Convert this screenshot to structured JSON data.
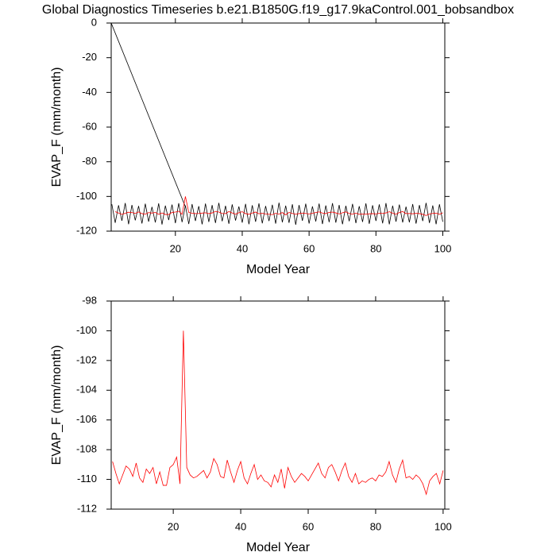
{
  "chart_data": [
    {
      "type": "line",
      "title": "Global Diagnostics Timeseries b.e21.B1850G.f19_g17.9kaControl.001_bobsandbox",
      "xlabel": "Model Year",
      "ylabel": "EVAP_F (mm/month)",
      "xlim": [
        0.8,
        100.6
      ],
      "ylim": [
        -120,
        0
      ],
      "xticks": [
        20,
        40,
        60,
        80,
        100
      ],
      "yticks": [
        0,
        -20,
        -40,
        -60,
        -80,
        -100,
        -120
      ],
      "series": [
        {
          "color": "#000000",
          "x": [
            0.8,
            23
          ],
          "values": [
            0,
            -106
          ]
        },
        {
          "color": "#000000",
          "x": [
            1,
            2,
            3,
            4,
            5,
            6,
            7,
            8,
            9,
            10,
            11,
            12,
            13,
            14,
            15,
            16,
            17,
            18,
            19,
            20,
            21,
            22,
            23,
            24,
            25,
            26,
            27,
            28,
            29,
            30,
            31,
            32,
            33,
            34,
            35,
            36,
            37,
            38,
            39,
            40,
            41,
            42,
            43,
            44,
            45,
            46,
            47,
            48,
            49,
            50,
            51,
            52,
            53,
            54,
            55,
            56,
            57,
            58,
            59,
            60,
            61,
            62,
            63,
            64,
            65,
            66,
            67,
            68,
            69,
            70,
            71,
            72,
            73,
            74,
            75,
            76,
            77,
            78,
            79,
            80,
            81,
            82,
            83,
            84,
            85,
            86,
            87,
            88,
            89,
            90,
            91,
            92,
            93,
            94,
            95,
            96,
            97,
            98,
            99,
            100
          ],
          "values": [
            -104.5,
            -115.2,
            -105.1,
            -114.0,
            -103.8,
            -116.0,
            -104.9,
            -113.8,
            -105.5,
            -115.6,
            -104.2,
            -114.5,
            -106.0,
            -115.0,
            -104.0,
            -116.2,
            -105.3,
            -113.6,
            -104.7,
            -115.4,
            -103.9,
            -114.8,
            -105.2,
            -115.9,
            -104.4,
            -114.1,
            -105.6,
            -116.1,
            -104.1,
            -114.7,
            -105.0,
            -115.3,
            -103.7,
            -114.3,
            -105.4,
            -115.8,
            -104.6,
            -113.9,
            -105.8,
            -115.1,
            -104.3,
            -116.0,
            -105.1,
            -114.6,
            -104.0,
            -115.5,
            -105.5,
            -114.2,
            -104.8,
            -115.7,
            -103.6,
            -114.9,
            -105.3,
            -115.2,
            -104.5,
            -116.3,
            -105.0,
            -114.0,
            -104.2,
            -115.6,
            -105.7,
            -114.4,
            -104.1,
            -115.9,
            -105.2,
            -114.8,
            -103.9,
            -115.1,
            -104.9,
            -116.0,
            -105.4,
            -114.3,
            -104.3,
            -115.4,
            -105.6,
            -114.7,
            -104.0,
            -115.8,
            -105.1,
            -114.1,
            -104.6,
            -115.5,
            -103.8,
            -116.1,
            -105.3,
            -114.5,
            -104.7,
            -115.0,
            -105.9,
            -114.9,
            -104.4,
            -115.7,
            -105.0,
            -114.2,
            -103.7,
            -115.3,
            -105.2,
            -116.0,
            -104.5,
            -114.6
          ]
        },
        {
          "color": "#ff0000",
          "x": [
            2,
            3,
            4,
            5,
            6,
            7,
            8,
            9,
            10,
            11,
            12,
            13,
            14,
            15,
            16,
            17,
            18,
            19,
            20,
            21,
            22,
            23,
            24,
            25,
            26,
            27,
            28,
            29,
            30,
            31,
            32,
            33,
            34,
            35,
            36,
            37,
            38,
            39,
            40,
            41,
            42,
            43,
            44,
            45,
            46,
            47,
            48,
            49,
            50,
            51,
            52,
            53,
            54,
            55,
            56,
            57,
            58,
            59,
            60,
            61,
            62,
            63,
            64,
            65,
            66,
            67,
            68,
            69,
            70,
            71,
            72,
            73,
            74,
            75,
            76,
            77,
            78,
            79,
            80,
            81,
            82,
            83,
            84,
            85,
            86,
            87,
            88,
            89,
            90,
            91,
            92,
            93,
            94,
            95,
            96,
            97,
            98,
            99,
            100
          ],
          "values": [
            -108.8,
            -109.6,
            -110.3,
            -109.7,
            -109.1,
            -109.3,
            -109.8,
            -108.9,
            -109.9,
            -110.2,
            -109.3,
            -109.6,
            -109.2,
            -110.3,
            -109.5,
            -110.4,
            -110.4,
            -109.2,
            -109.0,
            -108.5,
            -110.3,
            -100.0,
            -109.2,
            -109.7,
            -109.9,
            -109.8,
            -109.6,
            -109.4,
            -109.9,
            -109.5,
            -108.6,
            -109.0,
            -109.8,
            -109.9,
            -108.7,
            -109.5,
            -110.2,
            -109.4,
            -108.8,
            -109.9,
            -110.3,
            -109.6,
            -109.0,
            -110.0,
            -109.7,
            -110.1,
            -110.2,
            -110.5,
            -109.7,
            -110.2,
            -109.3,
            -110.6,
            -109.2,
            -109.8,
            -110.2,
            -109.9,
            -109.6,
            -109.8,
            -110.1,
            -109.7,
            -109.3,
            -108.9,
            -109.6,
            -109.9,
            -109.2,
            -109.0,
            -109.5,
            -110.1,
            -109.4,
            -108.9,
            -109.8,
            -110.2,
            -109.6,
            -110.3,
            -110.1,
            -110.2,
            -110.0,
            -109.9,
            -110.1,
            -109.7,
            -109.8,
            -109.5,
            -108.8,
            -109.7,
            -110.2,
            -109.3,
            -108.7,
            -109.9,
            -109.8,
            -110.0,
            -109.7,
            -109.9,
            -110.3,
            -111.0,
            -110.1,
            -109.8,
            -109.6,
            -110.3,
            -109.4
          ]
        }
      ]
    },
    {
      "type": "line",
      "xlabel": "Model Year",
      "ylabel": "EVAP_F (mm/month)",
      "xlim": [
        1.6,
        100.5
      ],
      "ylim": [
        -112,
        -98
      ],
      "xticks": [
        20,
        40,
        60,
        80,
        100
      ],
      "yticks": [
        -98,
        -100,
        -102,
        -104,
        -106,
        -108,
        -110,
        -112
      ],
      "series": [
        {
          "color": "#ff0000",
          "x": [
            2,
            3,
            4,
            5,
            6,
            7,
            8,
            9,
            10,
            11,
            12,
            13,
            14,
            15,
            16,
            17,
            18,
            19,
            20,
            21,
            22,
            23,
            24,
            25,
            26,
            27,
            28,
            29,
            30,
            31,
            32,
            33,
            34,
            35,
            36,
            37,
            38,
            39,
            40,
            41,
            42,
            43,
            44,
            45,
            46,
            47,
            48,
            49,
            50,
            51,
            52,
            53,
            54,
            55,
            56,
            57,
            58,
            59,
            60,
            61,
            62,
            63,
            64,
            65,
            66,
            67,
            68,
            69,
            70,
            71,
            72,
            73,
            74,
            75,
            76,
            77,
            78,
            79,
            80,
            81,
            82,
            83,
            84,
            85,
            86,
            87,
            88,
            89,
            90,
            91,
            92,
            93,
            94,
            95,
            96,
            97,
            98,
            99,
            100
          ],
          "values": [
            -108.8,
            -109.6,
            -110.3,
            -109.7,
            -109.1,
            -109.3,
            -109.8,
            -108.9,
            -109.9,
            -110.2,
            -109.3,
            -109.6,
            -109.2,
            -110.3,
            -109.5,
            -110.4,
            -110.4,
            -109.2,
            -109.0,
            -108.5,
            -110.3,
            -100.0,
            -109.2,
            -109.7,
            -109.9,
            -109.8,
            -109.6,
            -109.4,
            -109.9,
            -109.5,
            -108.6,
            -109.0,
            -109.8,
            -109.9,
            -108.7,
            -109.5,
            -110.2,
            -109.4,
            -108.8,
            -109.9,
            -110.3,
            -109.6,
            -109.0,
            -110.0,
            -109.7,
            -110.1,
            -110.2,
            -110.5,
            -109.7,
            -110.2,
            -109.3,
            -110.6,
            -109.2,
            -109.8,
            -110.2,
            -109.9,
            -109.6,
            -109.8,
            -110.1,
            -109.7,
            -109.3,
            -108.9,
            -109.6,
            -109.9,
            -109.2,
            -109.0,
            -109.5,
            -110.1,
            -109.4,
            -108.9,
            -109.8,
            -110.2,
            -109.6,
            -110.3,
            -110.1,
            -110.2,
            -110.0,
            -109.9,
            -110.1,
            -109.7,
            -109.8,
            -109.5,
            -108.8,
            -109.7,
            -110.2,
            -109.3,
            -108.7,
            -109.9,
            -109.8,
            -110.0,
            -109.7,
            -109.9,
            -110.3,
            -111.0,
            -110.1,
            -109.8,
            -109.6,
            -110.3,
            -109.4
          ]
        }
      ]
    }
  ]
}
